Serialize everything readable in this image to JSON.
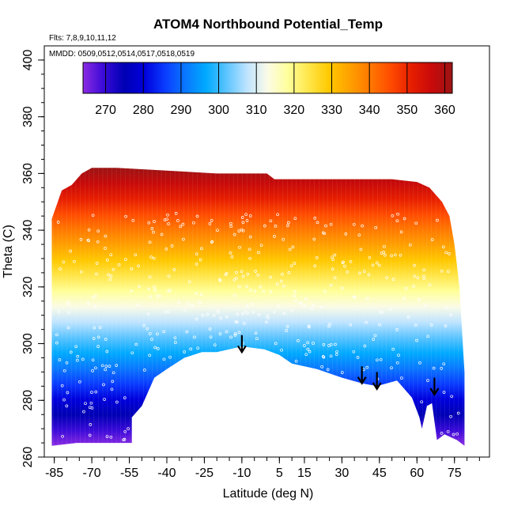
{
  "chart_data": {
    "type": "heatmap",
    "title": "ATOM4 Northbound Potential_Temp",
    "flights_note": "Flts: 7,8,9,10,11,12",
    "dates_note": "MMDD: 0509,0512,0514,0517,0518,0519",
    "xlabel": "Latitude (deg N)",
    "ylabel": "Theta (C)",
    "xlim": [
      -89,
      89
    ],
    "ylim": [
      260,
      405
    ],
    "x_ticks": [
      -85,
      -70,
      -55,
      -40,
      -25,
      -10,
      5,
      15,
      30,
      45,
      60,
      75
    ],
    "y_ticks": [
      260,
      280,
      300,
      320,
      340,
      360,
      380,
      400
    ],
    "colorbar": {
      "range": [
        264,
        362
      ],
      "ticks": [
        270,
        280,
        290,
        300,
        310,
        320,
        330,
        340,
        350,
        360
      ],
      "colors": [
        "#8b2be2",
        "#3a0ad8",
        "#0000b4",
        "#0000dc",
        "#0a3cff",
        "#0a78ff",
        "#00aaff",
        "#5cc4ff",
        "#bfe4ff",
        "#fbfbe6",
        "#ffff9a",
        "#ffe64a",
        "#ffc800",
        "#ffa000",
        "#ff7800",
        "#ff4b00",
        "#e61e00",
        "#c80a0a",
        "#9c1414"
      ]
    },
    "field": {
      "description": "potential temperature increases with theta level; upper boundary near 360, lower boundary (terrain/tropopause) follows surface",
      "upper_boundary": [
        [
          -86,
          344
        ],
        [
          -82,
          354
        ],
        [
          -78,
          356
        ],
        [
          -74,
          360
        ],
        [
          -70,
          362
        ],
        [
          -60,
          362
        ],
        [
          -40,
          361
        ],
        [
          -20,
          360
        ],
        [
          0,
          360
        ],
        [
          3,
          358
        ],
        [
          10,
          358
        ],
        [
          30,
          358
        ],
        [
          50,
          358
        ],
        [
          60,
          357
        ],
        [
          65,
          355
        ],
        [
          70,
          350
        ],
        [
          73,
          345
        ]
      ],
      "right_boundary": [
        [
          73,
          345
        ],
        [
          75,
          335
        ],
        [
          77,
          320
        ],
        [
          78,
          305
        ],
        [
          79,
          290
        ],
        [
          79,
          275
        ],
        [
          79,
          264
        ]
      ],
      "lower_boundary": [
        [
          -86,
          264
        ],
        [
          -76,
          265
        ],
        [
          -54,
          265
        ],
        [
          -54,
          274
        ],
        [
          -50,
          278
        ],
        [
          -45,
          288
        ],
        [
          -40,
          291
        ],
        [
          -33,
          295
        ],
        [
          -26,
          297
        ],
        [
          -20,
          297
        ],
        [
          -10,
          299
        ],
        [
          -1,
          298
        ],
        [
          5,
          296
        ],
        [
          10,
          293
        ],
        [
          20,
          291
        ],
        [
          30,
          288
        ],
        [
          38,
          286
        ],
        [
          44,
          285
        ],
        [
          52,
          287
        ],
        [
          58,
          281
        ],
        [
          61,
          274
        ],
        [
          62,
          270
        ],
        [
          64,
          278
        ],
        [
          66,
          279
        ],
        [
          68,
          266
        ],
        [
          71,
          268
        ],
        [
          76,
          266
        ],
        [
          79,
          264
        ]
      ]
    },
    "arrows": [
      {
        "lat": -10,
        "theta_top": 303,
        "theta_tip": 297
      },
      {
        "lat": 38,
        "theta_top": 292,
        "theta_tip": 286
      },
      {
        "lat": 44,
        "theta_top": 290,
        "theta_tip": 284
      },
      {
        "lat": 67,
        "theta_top": 288,
        "theta_tip": 282
      }
    ]
  }
}
